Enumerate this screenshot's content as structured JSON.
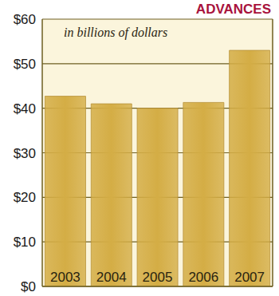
{
  "chart_data": {
    "type": "bar",
    "title": "ADVANCES",
    "annotation": "in billions of dollars",
    "categories": [
      "2003",
      "2004",
      "2005",
      "2006",
      "2007"
    ],
    "values": [
      42.7,
      41.0,
      40.0,
      41.3,
      53.0
    ],
    "color": "#d4ad45",
    "ylim": [
      0,
      60
    ],
    "yticks": [
      {
        "value": 0,
        "label": "$0"
      },
      {
        "value": 10,
        "label": "$10"
      },
      {
        "value": 20,
        "label": "$20"
      },
      {
        "value": 30,
        "label": "$30"
      },
      {
        "value": 40,
        "label": "$40"
      },
      {
        "value": 50,
        "label": "$50"
      },
      {
        "value": 60,
        "label": "$60"
      }
    ],
    "grid": true
  }
}
